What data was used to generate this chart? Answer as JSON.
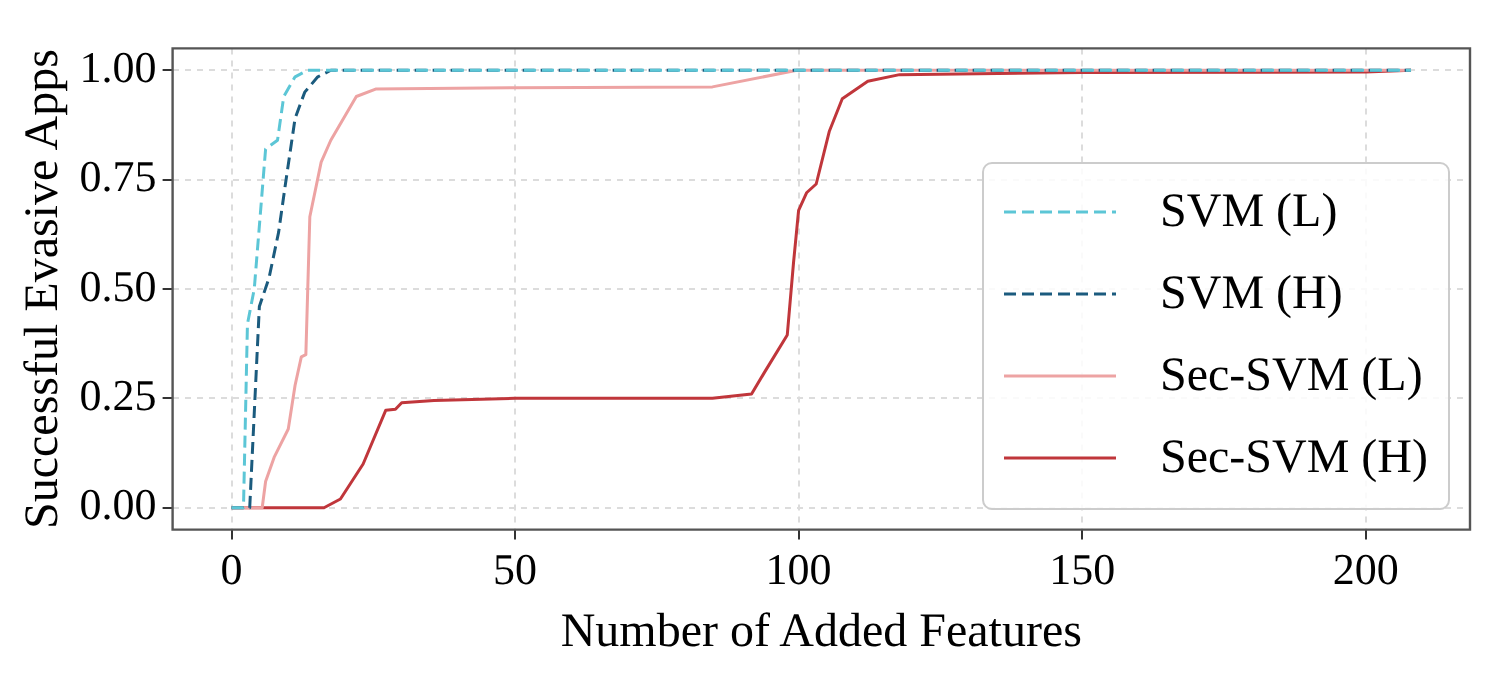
{
  "chart_data": {
    "type": "line",
    "xlabel": "Number of Added Features",
    "ylabel": "Successful Evasive Apps",
    "xlim": [
      -10.4,
      218.4
    ],
    "xticks": [
      0,
      50,
      100,
      150,
      200
    ],
    "ylim": [
      -0.05,
      1.05
    ],
    "yticks": [
      {
        "value": 0,
        "label": "0.00"
      },
      {
        "value": 0.25,
        "label": "0.25"
      },
      {
        "value": 0.5,
        "label": "0.50"
      },
      {
        "value": 0.75,
        "label": "0.75"
      },
      {
        "value": 1,
        "label": "1.00"
      }
    ],
    "grid": true,
    "legend": "bottom right",
    "marker": "none",
    "series": [
      {
        "name": "SVM (L)",
        "color": "#5cc6d6",
        "line_style": "dashed",
        "x": [
          0,
          2.1,
          2.8,
          4,
          6,
          8.1,
          9.2,
          11.2,
          13.4,
          50,
          100,
          150,
          208
        ],
        "values": [
          0,
          0,
          0.42,
          0.5,
          0.82,
          0.84,
          0.94,
          0.985,
          1,
          1,
          1,
          1,
          1
        ]
      },
      {
        "name": "SVM (H)",
        "color": "#1b5b7e",
        "line_style": "dashed",
        "x": [
          0,
          3.2,
          4.9,
          6.6,
          8.3,
          9.5,
          11.2,
          12.9,
          15.2,
          17.5,
          50,
          100,
          150,
          208
        ],
        "values": [
          0,
          0,
          0.46,
          0.525,
          0.63,
          0.74,
          0.89,
          0.95,
          0.985,
          1,
          1,
          1,
          1,
          1
        ]
      },
      {
        "name": "Sec-SVM (L)",
        "color": "#eda3a3",
        "line_style": "solid",
        "x": [
          0,
          5.4,
          6,
          7.5,
          10,
          11.2,
          12.3,
          13.1,
          13.8,
          15.8,
          17.5,
          22,
          25.4,
          50,
          84.8,
          99.7,
          150,
          208
        ],
        "values": [
          0,
          0,
          0.06,
          0.115,
          0.18,
          0.28,
          0.345,
          0.35,
          0.665,
          0.79,
          0.84,
          0.94,
          0.957,
          0.96,
          0.962,
          1,
          1,
          1
        ]
      },
      {
        "name": "Sec-SVM (H)",
        "color": "#c0363b",
        "line_style": "solid",
        "x": [
          0,
          16.3,
          19.2,
          23.2,
          27.2,
          28.9,
          30,
          35.7,
          50,
          84.8,
          91.7,
          94,
          98,
          99.1,
          100,
          101.4,
          103.1,
          105.4,
          107.7,
          112.2,
          117.8,
          150,
          200,
          208
        ],
        "values": [
          0,
          0,
          0.02,
          0.1,
          0.223,
          0.225,
          0.24,
          0.245,
          0.25,
          0.25,
          0.26,
          0.31,
          0.395,
          0.56,
          0.68,
          0.72,
          0.74,
          0.86,
          0.935,
          0.975,
          0.99,
          0.995,
          0.996,
          1
        ]
      }
    ]
  }
}
